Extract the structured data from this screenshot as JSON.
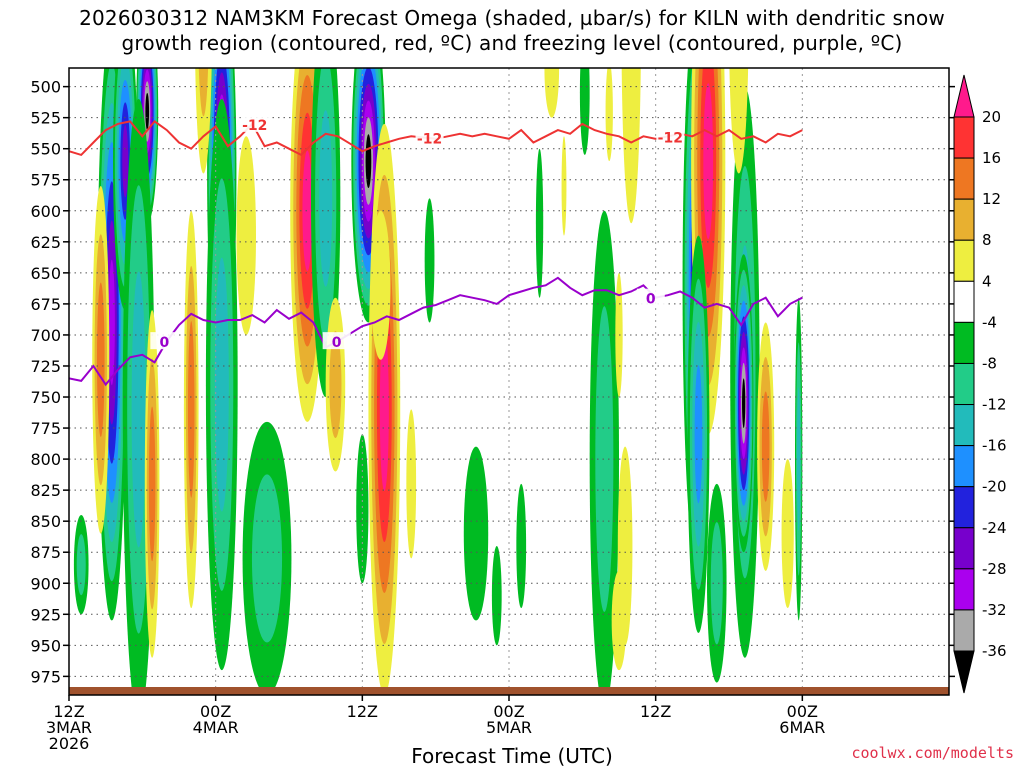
{
  "chart_data": {
    "type": "heatmap",
    "title_line1": "2026030312 NAM3KM Forecast Omega (shaded, µbar/s) for KILN with dendritic snow",
    "title_line2": "growth region (contoured, red, ºC) and freezing level (contoured, purple, ºC)",
    "xlabel": "Forecast Time (UTC)",
    "credit": "coolwx.com/modelts",
    "y_axis": {
      "ticks": [
        500,
        525,
        550,
        575,
        600,
        625,
        650,
        675,
        700,
        725,
        750,
        775,
        800,
        825,
        850,
        875,
        900,
        925,
        950,
        975
      ],
      "range": [
        485,
        990
      ]
    },
    "x_axis": {
      "range_hours": [
        0,
        72
      ],
      "ticks": [
        {
          "hour": 0,
          "lines": [
            "12Z",
            "3MAR",
            "2026"
          ]
        },
        {
          "hour": 12,
          "lines": [
            "00Z",
            "4MAR"
          ]
        },
        {
          "hour": 24,
          "lines": [
            "12Z"
          ]
        },
        {
          "hour": 36,
          "lines": [
            "00Z",
            "5MAR"
          ]
        },
        {
          "hour": 48,
          "lines": [
            "12Z"
          ]
        },
        {
          "hour": 60,
          "lines": [
            "00Z",
            "6MAR"
          ]
        }
      ]
    },
    "colorbar": {
      "labels": [
        "20",
        "16",
        "12",
        "8",
        "4",
        "-4",
        "-8",
        "-12",
        "-16",
        "-20",
        "-24",
        "-28",
        "-32",
        "-36"
      ],
      "colors": [
        "#ff1a8c",
        "#ff3333",
        "#ee7722",
        "#e8b030",
        "#eeee40",
        "#ffffff",
        "#00bb22",
        "#22cc88",
        "#22bbbb",
        "#1e90ff",
        "#2222dd",
        "#7700cc",
        "#aa00ee",
        "#aaaaaa",
        "#000000"
      ],
      "pos_cap_color": "#ff1a8c",
      "neg_cap_color": "#000000"
    },
    "contours": {
      "dgz_red": {
        "label": "-12",
        "color": "#ee3333",
        "points": [
          [
            0,
            552
          ],
          [
            1,
            555
          ],
          [
            2,
            545
          ],
          [
            3,
            535
          ],
          [
            4,
            530
          ],
          [
            5,
            528
          ],
          [
            6,
            540
          ],
          [
            7,
            528
          ],
          [
            8,
            535
          ],
          [
            9,
            545
          ],
          [
            10,
            550
          ],
          [
            11,
            540
          ],
          [
            12,
            532
          ],
          [
            13,
            548
          ],
          [
            14,
            540
          ],
          [
            15,
            530
          ],
          [
            16,
            548
          ],
          [
            17,
            545
          ],
          [
            18,
            550
          ],
          [
            19,
            555
          ],
          [
            20,
            545
          ],
          [
            21,
            538
          ],
          [
            22,
            540
          ],
          [
            23,
            546
          ],
          [
            24,
            552
          ],
          [
            25,
            548
          ],
          [
            26,
            545
          ],
          [
            27,
            542
          ],
          [
            28,
            540
          ],
          [
            29,
            541
          ],
          [
            30,
            542
          ],
          [
            31,
            540
          ],
          [
            32,
            538
          ],
          [
            33,
            540
          ],
          [
            34,
            538
          ],
          [
            35,
            540
          ],
          [
            36,
            542
          ],
          [
            37,
            535
          ],
          [
            38,
            545
          ],
          [
            39,
            540
          ],
          [
            40,
            535
          ],
          [
            41,
            538
          ],
          [
            42,
            530
          ],
          [
            43,
            535
          ],
          [
            44,
            538
          ],
          [
            45,
            540
          ],
          [
            46,
            545
          ],
          [
            47,
            540
          ],
          [
            48,
            542
          ],
          [
            49,
            540
          ],
          [
            50,
            538
          ],
          [
            51,
            540
          ],
          [
            52,
            535
          ],
          [
            53,
            540
          ],
          [
            54,
            535
          ],
          [
            55,
            542
          ],
          [
            56,
            540
          ],
          [
            57,
            545
          ],
          [
            58,
            538
          ],
          [
            59,
            540
          ],
          [
            60,
            535
          ]
        ],
        "label_hours": [
          15.2,
          29.5,
          49.2
        ]
      },
      "freezing_purple": {
        "label": "0",
        "color": "#9900cc",
        "points": [
          [
            0,
            735
          ],
          [
            1,
            737
          ],
          [
            2,
            725
          ],
          [
            3,
            740
          ],
          [
            4,
            728
          ],
          [
            5,
            718
          ],
          [
            6,
            716
          ],
          [
            7,
            722
          ],
          [
            8,
            705
          ],
          [
            9,
            692
          ],
          [
            10,
            683
          ],
          [
            11,
            688
          ],
          [
            12,
            690
          ],
          [
            13,
            688
          ],
          [
            14,
            688
          ],
          [
            15,
            684
          ],
          [
            16,
            690
          ],
          [
            17,
            680
          ],
          [
            18,
            687
          ],
          [
            19,
            682
          ],
          [
            20,
            690
          ],
          [
            21,
            710
          ],
          [
            22,
            705
          ],
          [
            23,
            699
          ],
          [
            24,
            693
          ],
          [
            25,
            690
          ],
          [
            26,
            685
          ],
          [
            27,
            688
          ],
          [
            28,
            683
          ],
          [
            29,
            678
          ],
          [
            30,
            676
          ],
          [
            31,
            672
          ],
          [
            32,
            668
          ],
          [
            33,
            670
          ],
          [
            34,
            672
          ],
          [
            35,
            675
          ],
          [
            36,
            668
          ],
          [
            37,
            665
          ],
          [
            38,
            662
          ],
          [
            39,
            660
          ],
          [
            40,
            654
          ],
          [
            41,
            662
          ],
          [
            42,
            668
          ],
          [
            43,
            664
          ],
          [
            44,
            664
          ],
          [
            45,
            668
          ],
          [
            46,
            665
          ],
          [
            47,
            660
          ],
          [
            48,
            670
          ],
          [
            49,
            668
          ],
          [
            50,
            665
          ],
          [
            51,
            670
          ],
          [
            52,
            678
          ],
          [
            53,
            675
          ],
          [
            54,
            678
          ],
          [
            55,
            692
          ],
          [
            56,
            675
          ],
          [
            57,
            670
          ],
          [
            58,
            685
          ],
          [
            59,
            675
          ],
          [
            60,
            670
          ]
        ],
        "label_hours": [
          7.8,
          21.9,
          47.6
        ]
      }
    }
  }
}
